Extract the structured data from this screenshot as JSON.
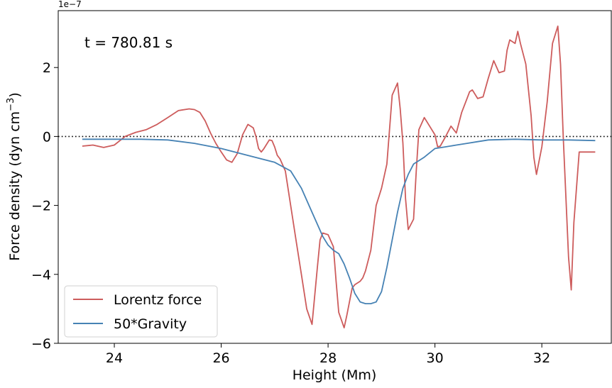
{
  "chart_data": {
    "type": "line",
    "title": "",
    "xlabel": "Height (Mm)",
    "ylabel_main": "Force density (dyn cm",
    "ylabel_sup": "−3",
    "ylabel_close": ")",
    "y_offset_label": "1e−7",
    "annotation": "t = 780.81 s",
    "xlim": [
      22.95,
      33.3
    ],
    "ylim": [
      -6.0,
      3.65
    ],
    "x_ticks": [
      24,
      26,
      28,
      30,
      32
    ],
    "x_tick_labels": [
      "24",
      "26",
      "28",
      "30",
      "32"
    ],
    "y_ticks": [
      -6,
      -4,
      -2,
      0,
      2
    ],
    "y_tick_labels": [
      "−6",
      "−4",
      "−2",
      "0",
      "2"
    ],
    "grid": false,
    "reference_line": {
      "y": 0,
      "style": "dotted",
      "color": "#000000"
    },
    "legend": {
      "position": "lower-left"
    },
    "series": [
      {
        "name": "Lorentz force",
        "color": "#cd5c5c",
        "x": [
          23.4,
          23.6,
          23.8,
          24.0,
          24.2,
          24.4,
          24.6,
          24.8,
          25.0,
          25.2,
          25.4,
          25.5,
          25.6,
          25.7,
          25.8,
          25.9,
          26.0,
          26.1,
          26.2,
          26.3,
          26.4,
          26.5,
          26.6,
          26.65,
          26.7,
          26.75,
          26.8,
          26.9,
          26.95,
          27.0,
          27.05,
          27.1,
          27.2,
          27.3,
          27.4,
          27.5,
          27.6,
          27.7,
          27.8,
          27.85,
          27.9,
          28.0,
          28.1,
          28.15,
          28.2,
          28.3,
          28.35,
          28.4,
          28.45,
          28.5,
          28.6,
          28.65,
          28.7,
          28.8,
          28.9,
          29.0,
          29.1,
          29.2,
          29.3,
          29.35,
          29.4,
          29.45,
          29.5,
          29.6,
          29.65,
          29.7,
          29.8,
          29.9,
          30.0,
          30.05,
          30.1,
          30.2,
          30.3,
          30.4,
          30.5,
          30.6,
          30.65,
          30.7,
          30.8,
          30.9,
          31.0,
          31.1,
          31.2,
          31.3,
          31.35,
          31.4,
          31.5,
          31.55,
          31.6,
          31.7,
          31.8,
          31.85,
          31.9,
          32.0,
          32.1,
          32.2,
          32.3,
          32.35,
          32.4,
          32.5,
          32.55,
          32.6,
          32.7,
          32.75,
          32.8,
          32.9,
          33.0
        ],
        "y": [
          -0.28,
          -0.25,
          -0.32,
          -0.25,
          0.0,
          0.12,
          0.2,
          0.35,
          0.55,
          0.75,
          0.8,
          0.78,
          0.7,
          0.45,
          0.1,
          -0.2,
          -0.45,
          -0.68,
          -0.75,
          -0.5,
          0.05,
          0.35,
          0.25,
          0.0,
          -0.35,
          -0.45,
          -0.35,
          -0.1,
          -0.12,
          -0.3,
          -0.55,
          -0.65,
          -1.0,
          -2.0,
          -3.0,
          -4.0,
          -5.0,
          -5.45,
          -3.8,
          -3.0,
          -2.8,
          -2.85,
          -3.2,
          -4.2,
          -5.1,
          -5.55,
          -5.2,
          -4.8,
          -4.4,
          -4.3,
          -4.2,
          -4.1,
          -3.9,
          -3.3,
          -2.0,
          -1.5,
          -0.8,
          1.2,
          1.55,
          0.8,
          -0.2,
          -1.8,
          -2.7,
          -2.4,
          -1.0,
          0.2,
          0.55,
          0.3,
          0.05,
          -0.3,
          -0.28,
          0.0,
          0.3,
          0.1,
          0.7,
          1.1,
          1.3,
          1.35,
          1.1,
          1.15,
          1.7,
          2.2,
          1.85,
          1.9,
          2.5,
          2.8,
          2.7,
          3.05,
          2.7,
          2.1,
          0.6,
          -0.6,
          -1.1,
          -0.3,
          1.0,
          2.7,
          3.2,
          2.1,
          0.0,
          -3.5,
          -4.45,
          -2.5,
          -0.45,
          -0.45,
          -0.45,
          -0.45,
          -0.45
        ]
      },
      {
        "name": "50*Gravity",
        "color": "#4682b4",
        "x": [
          23.4,
          24.0,
          24.5,
          25.0,
          25.5,
          26.0,
          26.5,
          27.0,
          27.3,
          27.5,
          27.7,
          27.9,
          28.0,
          28.1,
          28.2,
          28.3,
          28.4,
          28.5,
          28.6,
          28.7,
          28.8,
          28.9,
          29.0,
          29.1,
          29.2,
          29.3,
          29.4,
          29.5,
          29.6,
          29.8,
          30.0,
          30.2,
          30.4,
          30.6,
          30.8,
          31.0,
          31.5,
          32.0,
          32.5,
          33.0
        ],
        "y": [
          -0.08,
          -0.08,
          -0.08,
          -0.1,
          -0.2,
          -0.35,
          -0.55,
          -0.75,
          -1.0,
          -1.5,
          -2.2,
          -2.9,
          -3.15,
          -3.3,
          -3.4,
          -3.7,
          -4.1,
          -4.55,
          -4.8,
          -4.85,
          -4.85,
          -4.8,
          -4.5,
          -3.8,
          -3.0,
          -2.2,
          -1.5,
          -1.1,
          -0.8,
          -0.6,
          -0.35,
          -0.3,
          -0.25,
          -0.2,
          -0.15,
          -0.1,
          -0.08,
          -0.1,
          -0.1,
          -0.12
        ]
      }
    ]
  }
}
